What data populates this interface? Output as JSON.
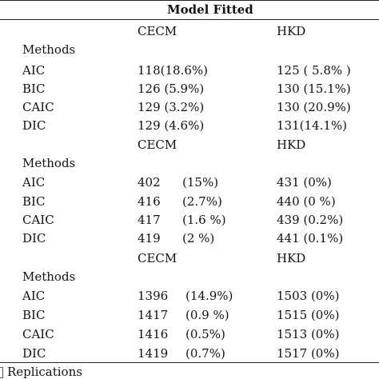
{
  "header": {
    "title": "Model Fitted"
  },
  "blocks": [
    {
      "col1": "CECM",
      "col2": "HKD",
      "methods_label": "Methods",
      "rows": [
        {
          "method": "AIC",
          "cecm": "118(18.6%)",
          "hkd": "125 ( 5.8% )"
        },
        {
          "method": "BIC",
          "cecm": "126 (5.9%)",
          "hkd": "130 (15.1%)"
        },
        {
          "method": "CAIC",
          "cecm": "129 (3.2%)",
          "hkd": "130 (20.9%)"
        },
        {
          "method": "DIC",
          "cecm": "129 (4.6%)",
          "hkd": "131(14.1%)"
        }
      ]
    },
    {
      "col1": "CECM",
      "col2": "HKD",
      "methods_label": "Methods",
      "rows": [
        {
          "method": "AIC",
          "cecm_value": "402",
          "cecm_pct": "(15%)",
          "hkd": "431 (0%)"
        },
        {
          "method": "BIC",
          "cecm_value": "416",
          "cecm_pct": "(2.7%)",
          "hkd": "440 (0 %)"
        },
        {
          "method": "CAIC",
          "cecm_value": "417",
          "cecm_pct": "(1.6 %)",
          "hkd": "439 (0.2%)"
        },
        {
          "method": "DIC",
          "cecm_value": "419",
          "cecm_pct": "(2 %)",
          "hkd": "441 (0.1%)"
        }
      ]
    },
    {
      "col1": "CECM",
      "col2": "HKD",
      "methods_label": "Methods",
      "rows": [
        {
          "method": "AIC",
          "cecm_value": "1396",
          "cecm_pct": "(14.9%)",
          "hkd": "1503 (0%)"
        },
        {
          "method": "BIC",
          "cecm_value": "1417",
          "cecm_pct": "(0.9 %)",
          "hkd": "1515 (0%)"
        },
        {
          "method": "CAIC",
          "cecm_value": "1416",
          "cecm_pct": "(0.5%)",
          "hkd": "1513 (0%)"
        },
        {
          "method": "DIC",
          "cecm_value": "1419",
          "cecm_pct": "(0.7%)",
          "hkd": "1517 (0%)"
        }
      ]
    }
  ],
  "footnote": "Replications"
}
